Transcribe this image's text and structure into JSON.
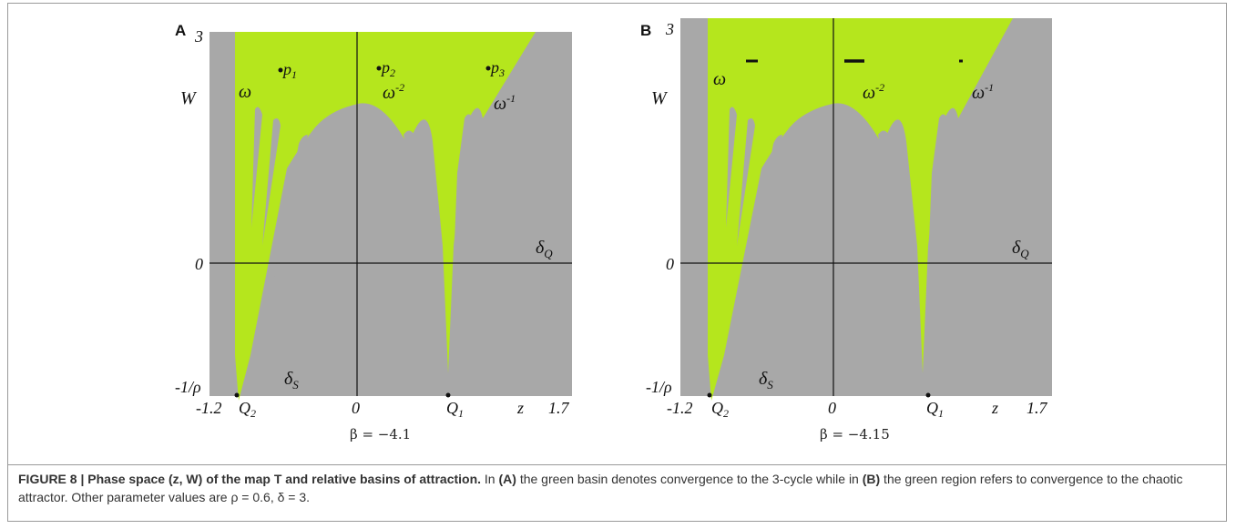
{
  "panels": [
    {
      "letter": "A",
      "beta_label": "β = −4.1",
      "y_axis": {
        "top": "3",
        "label": "W",
        "zero": "0",
        "bottom": "-1/ρ"
      },
      "x_axis": {
        "left": "-1.2",
        "zero": "0",
        "label": "z",
        "right": "1.7"
      },
      "points": [
        "p",
        "p",
        "p"
      ],
      "point_subs": [
        "1",
        "2",
        "3"
      ],
      "omega_labels": {
        "w": "ω",
        "wm2": "ω",
        "wm2_sup": "-2",
        "wm1": "ω",
        "wm1_sup": "-1"
      },
      "deltaQ": "δ",
      "deltaQ_sub": "Q",
      "deltaS": "δ",
      "deltaS_sub": "S",
      "Q2": "Q",
      "Q2_sub": "2",
      "Q1": "Q",
      "Q1_sub": "1"
    },
    {
      "letter": "B",
      "beta_label": "β = −4.15",
      "y_axis": {
        "top": "3",
        "label": "W",
        "zero": "0",
        "bottom": "-1/ρ"
      },
      "x_axis": {
        "left": "-1.2",
        "zero": "0",
        "label": "z",
        "right": "1.7"
      },
      "omega_labels": {
        "w": "ω",
        "wm2": "ω",
        "wm2_sup": "-2",
        "wm1": "ω",
        "wm1_sup": "-1"
      },
      "deltaQ": "δ",
      "deltaQ_sub": "Q",
      "deltaS": "δ",
      "deltaS_sub": "S",
      "Q2": "Q",
      "Q2_sub": "2",
      "Q1": "Q",
      "Q1_sub": "1"
    }
  ],
  "colors": {
    "basin": "#b5e61d",
    "background": "#a8a8a8",
    "axis": "#111111"
  },
  "caption": {
    "title": "FIGURE 8 | Phase space (z, W) of the map T and relative basins of attraction.",
    "t1": " In ",
    "ref_a": "(A)",
    "t2": " the green basin denotes convergence to the 3-cycle while in ",
    "ref_b": "(B)",
    "t3": " the green region refers to convergence to the chaotic attractor. Other parameter values are ρ = 0.6, δ = 3."
  }
}
